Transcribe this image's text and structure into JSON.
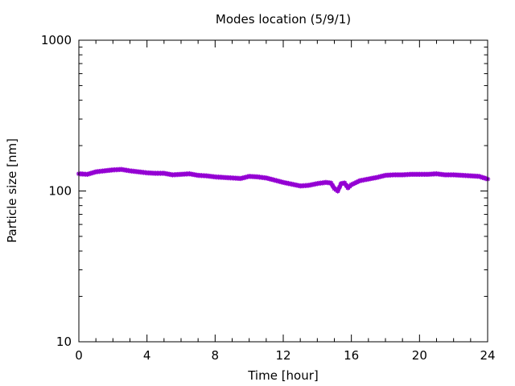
{
  "chart_data": {
    "type": "scatter",
    "title": "Modes location (5/9/1)",
    "xlabel": "Time [hour]",
    "ylabel": "Particle size [nm]",
    "xlim": [
      0,
      24
    ],
    "ylim": [
      10,
      1000
    ],
    "yscale": "log",
    "xticks": [
      {
        "value": 0,
        "label": "0"
      },
      {
        "value": 4,
        "label": "4"
      },
      {
        "value": 8,
        "label": "8"
      },
      {
        "value": 12,
        "label": "12"
      },
      {
        "value": 16,
        "label": "16"
      },
      {
        "value": 20,
        "label": "20"
      },
      {
        "value": 24,
        "label": "24"
      }
    ],
    "yticks": [
      {
        "value": 10,
        "label": "10"
      },
      {
        "value": 100,
        "label": "100"
      },
      {
        "value": 1000,
        "label": "1000"
      }
    ],
    "grid": false,
    "series": [
      {
        "color": "#9400d3",
        "marker": "star",
        "x": [
          0,
          0.5,
          1,
          1.5,
          2,
          2.5,
          3,
          3.5,
          4,
          4.5,
          5,
          5.5,
          6,
          6.5,
          7,
          7.5,
          8,
          8.5,
          9,
          9.5,
          10,
          10.5,
          11,
          11.5,
          12,
          12.5,
          13,
          13.5,
          14,
          14.5,
          14.8,
          15,
          15.2,
          15.4,
          15.6,
          15.8,
          16,
          16.5,
          17,
          17.5,
          18,
          18.5,
          19,
          19.5,
          20,
          20.5,
          21,
          21.5,
          22,
          22.5,
          23,
          23.5,
          24
        ],
        "y": [
          130,
          129,
          134,
          136,
          138,
          139,
          136,
          134,
          132,
          131,
          131,
          128,
          129,
          130,
          127,
          126,
          124,
          123,
          122,
          121,
          125,
          124,
          122,
          118,
          114,
          111,
          108,
          109,
          112,
          114,
          113,
          104,
          100,
          112,
          113,
          105,
          110,
          117,
          120,
          123,
          127,
          128,
          128,
          129,
          129,
          129,
          130,
          128,
          128,
          127,
          126,
          125,
          120
        ]
      }
    ]
  }
}
